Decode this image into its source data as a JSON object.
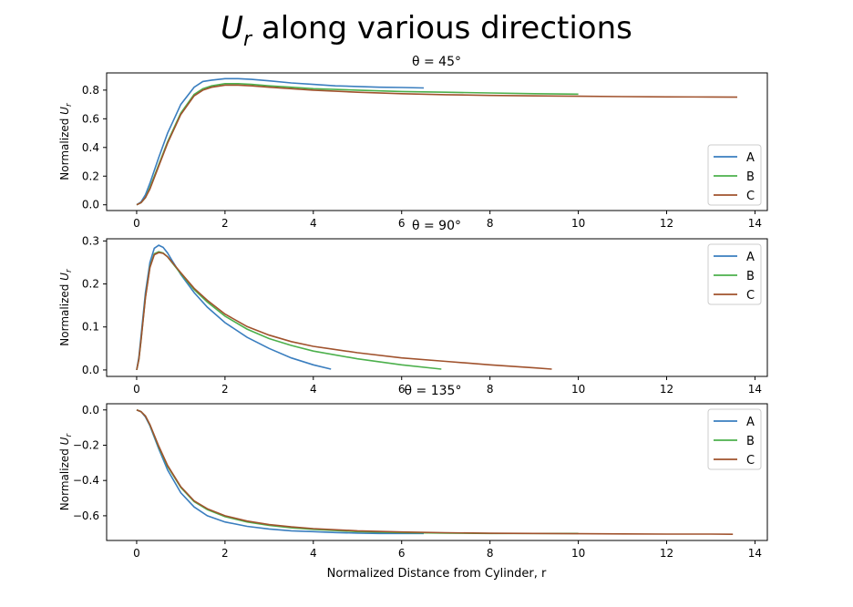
{
  "figure": {
    "title_symbol": "U",
    "title_subscript": "r",
    "title_rest": " along various directions",
    "xlabel": "Normalized Distance from Cylinder, r"
  },
  "colors": {
    "A": "#3a7ebf",
    "B": "#4cb04c",
    "C": "#a0522d"
  },
  "chart_data": [
    {
      "type": "line",
      "title": "θ = 45°",
      "ylabel": "Normalized U_r",
      "xlim": [
        -0.68,
        14.28
      ],
      "ylim": [
        -0.04,
        0.92
      ],
      "xticks": [
        0,
        2,
        4,
        6,
        8,
        10,
        12,
        14
      ],
      "yticks": [
        0.0,
        0.2,
        0.4,
        0.6,
        0.8
      ],
      "ytick_labels": [
        "0.0",
        "0.2",
        "0.4",
        "0.6",
        "0.8"
      ],
      "legend": "lower-right",
      "series": [
        {
          "name": "A",
          "x": [
            0,
            0.1,
            0.2,
            0.3,
            0.5,
            0.7,
            1.0,
            1.3,
            1.5,
            1.7,
            2.0,
            2.3,
            2.6,
            3.0,
            3.5,
            4.0,
            4.5,
            5.0,
            5.5,
            6.0,
            6.5
          ],
          "y": [
            0,
            0.02,
            0.07,
            0.15,
            0.33,
            0.5,
            0.7,
            0.82,
            0.86,
            0.87,
            0.88,
            0.88,
            0.875,
            0.865,
            0.85,
            0.84,
            0.83,
            0.825,
            0.82,
            0.818,
            0.815
          ]
        },
        {
          "name": "B",
          "x": [
            0,
            0.1,
            0.2,
            0.3,
            0.5,
            0.7,
            1.0,
            1.3,
            1.5,
            1.7,
            2.0,
            2.3,
            2.6,
            3.0,
            3.5,
            4.0,
            5.0,
            6.0,
            7.0,
            8.0,
            9.0,
            10.0
          ],
          "y": [
            0,
            0.015,
            0.05,
            0.12,
            0.28,
            0.44,
            0.64,
            0.77,
            0.81,
            0.83,
            0.845,
            0.845,
            0.84,
            0.83,
            0.82,
            0.81,
            0.8,
            0.79,
            0.785,
            0.78,
            0.775,
            0.772
          ]
        },
        {
          "name": "C",
          "x": [
            0,
            0.1,
            0.2,
            0.3,
            0.5,
            0.7,
            1.0,
            1.3,
            1.5,
            1.7,
            2.0,
            2.3,
            2.6,
            3.0,
            3.5,
            4.0,
            5.0,
            6.0,
            7.0,
            8.0,
            9.0,
            10.0,
            11.0,
            12.0,
            13.0,
            13.6
          ],
          "y": [
            0,
            0.015,
            0.05,
            0.11,
            0.27,
            0.43,
            0.63,
            0.76,
            0.8,
            0.82,
            0.835,
            0.835,
            0.83,
            0.82,
            0.81,
            0.8,
            0.785,
            0.775,
            0.768,
            0.763,
            0.76,
            0.757,
            0.755,
            0.753,
            0.752,
            0.751
          ]
        }
      ]
    },
    {
      "type": "line",
      "title": "θ = 90°",
      "ylabel": "Normalized U_r",
      "xlim": [
        -0.68,
        14.28
      ],
      "ylim": [
        -0.015,
        0.305
      ],
      "xticks": [
        0,
        2,
        4,
        6,
        8,
        10,
        12,
        14
      ],
      "yticks": [
        0.0,
        0.1,
        0.2,
        0.3
      ],
      "ytick_labels": [
        "0.0",
        "0.1",
        "0.2",
        "0.3"
      ],
      "legend": "upper-right",
      "series": [
        {
          "name": "A",
          "x": [
            0,
            0.05,
            0.1,
            0.2,
            0.3,
            0.4,
            0.5,
            0.6,
            0.7,
            0.8,
            1.0,
            1.3,
            1.6,
            2.0,
            2.5,
            3.0,
            3.5,
            4.0,
            4.4
          ],
          "y": [
            0,
            0.03,
            0.08,
            0.18,
            0.25,
            0.283,
            0.29,
            0.285,
            0.272,
            0.255,
            0.222,
            0.18,
            0.146,
            0.11,
            0.076,
            0.05,
            0.028,
            0.012,
            0.002
          ]
        },
        {
          "name": "B",
          "x": [
            0,
            0.05,
            0.1,
            0.2,
            0.3,
            0.4,
            0.5,
            0.6,
            0.7,
            0.8,
            1.0,
            1.3,
            1.6,
            2.0,
            2.5,
            3.0,
            3.5,
            4.0,
            5.0,
            6.0,
            6.9
          ],
          "y": [
            0,
            0.025,
            0.07,
            0.17,
            0.24,
            0.27,
            0.275,
            0.272,
            0.263,
            0.25,
            0.224,
            0.187,
            0.158,
            0.125,
            0.095,
            0.073,
            0.057,
            0.044,
            0.026,
            0.012,
            0.002
          ]
        },
        {
          "name": "C",
          "x": [
            0,
            0.05,
            0.1,
            0.2,
            0.3,
            0.4,
            0.5,
            0.6,
            0.7,
            0.8,
            1.0,
            1.3,
            1.6,
            2.0,
            2.5,
            3.0,
            3.5,
            4.0,
            5.0,
            6.0,
            7.0,
            8.0,
            9.0,
            9.4
          ],
          "y": [
            0,
            0.025,
            0.07,
            0.168,
            0.238,
            0.268,
            0.273,
            0.271,
            0.263,
            0.251,
            0.226,
            0.19,
            0.162,
            0.13,
            0.101,
            0.081,
            0.066,
            0.055,
            0.04,
            0.028,
            0.02,
            0.012,
            0.005,
            0.002
          ]
        }
      ]
    },
    {
      "type": "line",
      "title": "θ = 135°",
      "ylabel": "Normalized U_r",
      "xlim": [
        -0.68,
        14.28
      ],
      "ylim": [
        -0.74,
        0.035
      ],
      "xticks": [
        0,
        2,
        4,
        6,
        8,
        10,
        12,
        14
      ],
      "yticks": [
        0.0,
        -0.2,
        -0.4,
        -0.6
      ],
      "ytick_labels": [
        "0.0",
        "−0.2",
        "−0.4",
        "−0.6"
      ],
      "legend": "upper-right",
      "series": [
        {
          "name": "A",
          "x": [
            0,
            0.1,
            0.2,
            0.3,
            0.5,
            0.7,
            1.0,
            1.3,
            1.6,
            2.0,
            2.5,
            3.0,
            3.5,
            4.0,
            4.5,
            5.0,
            5.5,
            6.0,
            6.5
          ],
          "y": [
            0,
            -0.01,
            -0.04,
            -0.09,
            -0.22,
            -0.34,
            -0.47,
            -0.55,
            -0.6,
            -0.635,
            -0.66,
            -0.675,
            -0.685,
            -0.69,
            -0.695,
            -0.698,
            -0.7,
            -0.7,
            -0.7
          ]
        },
        {
          "name": "B",
          "x": [
            0,
            0.1,
            0.2,
            0.3,
            0.5,
            0.7,
            1.0,
            1.3,
            1.6,
            2.0,
            2.5,
            3.0,
            3.5,
            4.0,
            5.0,
            6.0,
            7.0,
            8.0,
            9.0,
            10.0
          ],
          "y": [
            0,
            -0.01,
            -0.035,
            -0.085,
            -0.21,
            -0.32,
            -0.44,
            -0.52,
            -0.565,
            -0.605,
            -0.635,
            -0.655,
            -0.668,
            -0.677,
            -0.69,
            -0.695,
            -0.698,
            -0.7,
            -0.7,
            -0.7
          ]
        },
        {
          "name": "C",
          "x": [
            0,
            0.1,
            0.2,
            0.3,
            0.5,
            0.7,
            1.0,
            1.3,
            1.6,
            2.0,
            2.5,
            3.0,
            3.5,
            4.0,
            5.0,
            6.0,
            7.0,
            8.0,
            9.0,
            10.0,
            11.0,
            12.0,
            13.0,
            13.5
          ],
          "y": [
            0,
            -0.01,
            -0.035,
            -0.083,
            -0.205,
            -0.315,
            -0.435,
            -0.515,
            -0.56,
            -0.6,
            -0.63,
            -0.65,
            -0.663,
            -0.673,
            -0.685,
            -0.692,
            -0.696,
            -0.699,
            -0.7,
            -0.702,
            -0.703,
            -0.704,
            -0.704,
            -0.705
          ]
        }
      ]
    }
  ]
}
